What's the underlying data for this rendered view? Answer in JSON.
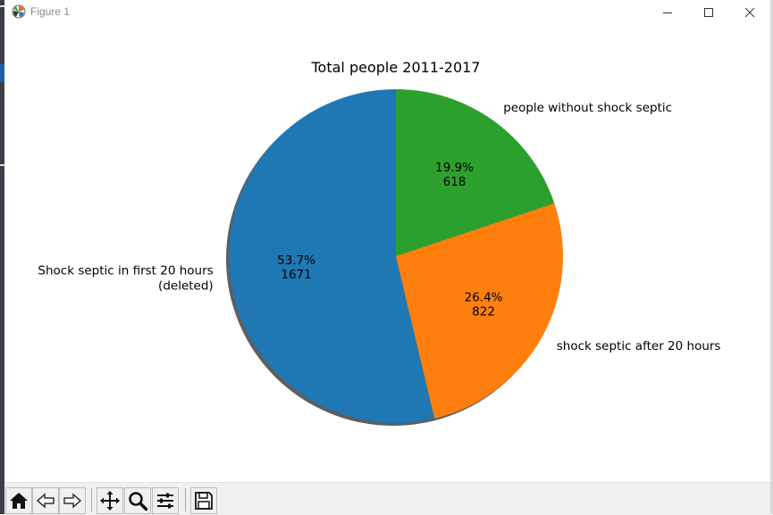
{
  "window": {
    "title": "Figure 1",
    "controls": [
      "minimize",
      "maximize",
      "close"
    ]
  },
  "toolbar": {
    "buttons": [
      "home-icon",
      "back-icon",
      "forward-icon",
      "pan-icon",
      "zoom-icon",
      "configure-subplots-icon",
      "save-icon"
    ]
  },
  "chart_data": {
    "type": "pie",
    "title": "Total people 2011-2017",
    "slices": [
      {
        "label": "Shock septic in first 20 hours (deleted)",
        "label_lines": [
          "Shock septic in first 20 hours",
          "(deleted)"
        ],
        "value": 1671,
        "percent": "53.7%",
        "color": "#1f77b4"
      },
      {
        "label": "shock septic after 20 hours",
        "label_lines": [
          "shock septic after 20 hours"
        ],
        "value": 822,
        "percent": "26.4%",
        "color": "#ff7f0e"
      },
      {
        "label": "people without shock septic",
        "label_lines": [
          "people without shock septic"
        ],
        "value": 618,
        "percent": "19.9%",
        "color": "#2ca02c"
      }
    ],
    "start_angle_deg": 90,
    "counterclock": true,
    "shadow": true
  }
}
